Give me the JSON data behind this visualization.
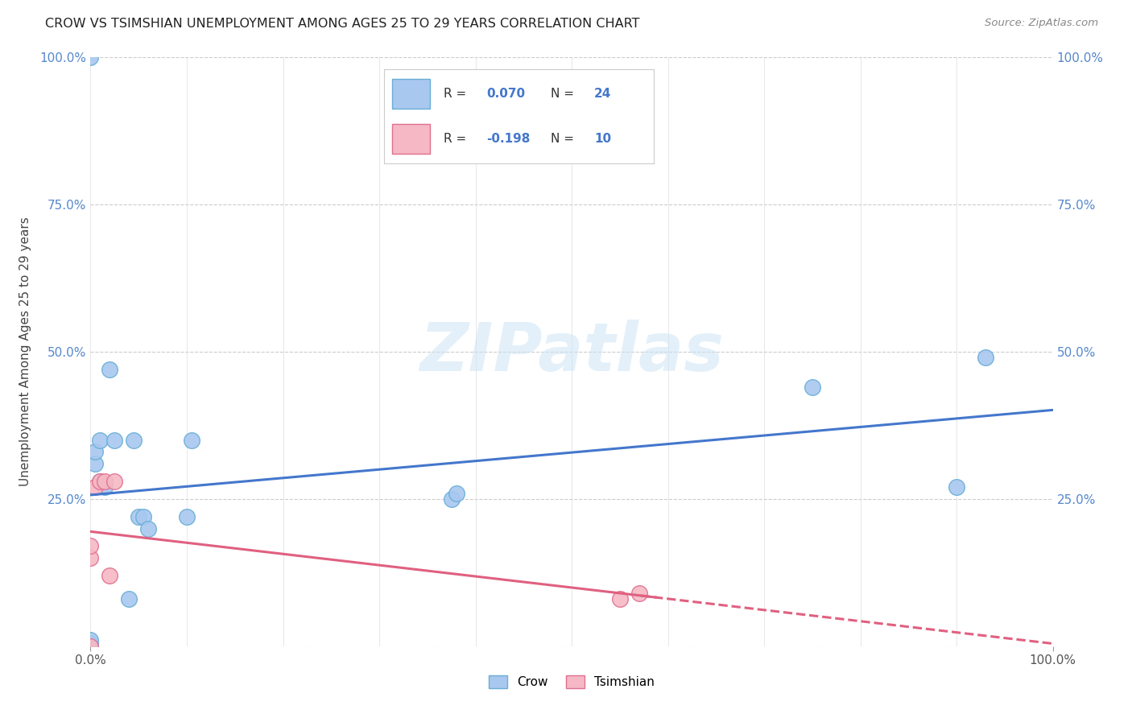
{
  "title": "CROW VS TSIMSHIAN UNEMPLOYMENT AMONG AGES 25 TO 29 YEARS CORRELATION CHART",
  "source": "Source: ZipAtlas.com",
  "ylabel": "Unemployment Among Ages 25 to 29 years",
  "crow_color": "#a8c8f0",
  "crow_edge_color": "#6aaed6",
  "tsimshian_color": "#f5b8c4",
  "tsimshian_edge_color": "#e07090",
  "crow_line_color": "#4477cc",
  "tsimshian_line_color": "#e06080",
  "legend_R_color": "#4477cc",
  "crow_R": "0.070",
  "crow_N": "24",
  "tsimshian_R": "-0.198",
  "tsimshian_N": "10",
  "crow_scatter_x": [
    0.0,
    0.0,
    0.0,
    0.0,
    0.0,
    0.005,
    0.005,
    0.01,
    0.01,
    0.015,
    0.02,
    0.025,
    0.04,
    0.045,
    0.05,
    0.055,
    0.06,
    0.1,
    0.105,
    0.375,
    0.38,
    0.75,
    0.9,
    0.93
  ],
  "crow_scatter_y": [
    0.0,
    0.0,
    0.005,
    0.01,
    1.0,
    0.31,
    0.33,
    0.35,
    0.28,
    0.27,
    0.47,
    0.35,
    0.08,
    0.35,
    0.22,
    0.22,
    0.2,
    0.22,
    0.35,
    0.25,
    0.26,
    0.44,
    0.27,
    0.49
  ],
  "tsimshian_scatter_x": [
    0.0,
    0.0,
    0.0,
    0.005,
    0.01,
    0.015,
    0.02,
    0.025,
    0.55,
    0.57
  ],
  "tsimshian_scatter_y": [
    0.0,
    0.15,
    0.17,
    0.27,
    0.28,
    0.28,
    0.12,
    0.28,
    0.08,
    0.09
  ],
  "watermark_text": "ZIPatlas",
  "marker_size": 200
}
